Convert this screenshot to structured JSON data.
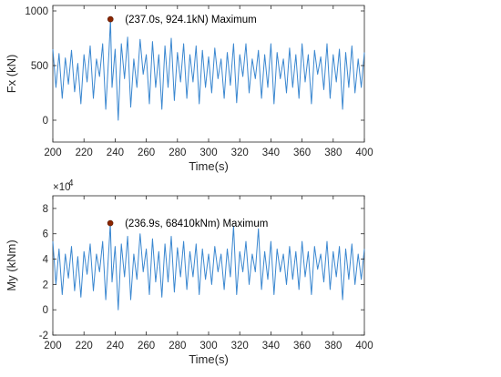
{
  "chart_data": [
    {
      "type": "line",
      "title": "",
      "xlabel": "Time(s)",
      "ylabel": "Fx (kN)",
      "xlim": [
        200,
        400
      ],
      "ylim": [
        -200,
        1050
      ],
      "grid": false,
      "x_ticks": [
        200,
        220,
        240,
        260,
        280,
        300,
        320,
        340,
        360,
        380,
        400
      ],
      "y_ticks": [
        0,
        500,
        1000
      ],
      "y_multiplier": "",
      "color": "#3a87d0",
      "marker_color": "#8b2500",
      "series": [
        {
          "x": [
            200,
            202,
            204,
            206,
            208,
            210,
            212,
            214,
            216,
            218,
            220,
            222,
            224,
            226,
            228,
            230,
            232,
            234,
            236,
            237,
            238,
            240,
            242,
            244,
            246,
            248,
            250,
            252,
            254,
            256,
            258,
            260,
            262,
            264,
            266,
            268,
            270,
            272,
            274,
            276,
            278,
            280,
            282,
            284,
            286,
            288,
            290,
            292,
            294,
            296,
            298,
            300,
            302,
            304,
            306,
            308,
            310,
            312,
            314,
            316,
            318,
            320,
            322,
            324,
            326,
            328,
            330,
            332,
            334,
            336,
            338,
            340,
            342,
            344,
            346,
            348,
            350,
            352,
            354,
            356,
            358,
            360,
            362,
            364,
            366,
            368,
            370,
            372,
            374,
            376,
            378,
            380,
            382,
            384,
            386,
            388,
            390,
            392,
            394,
            396,
            398,
            400
          ],
          "y": [
            650,
            300,
            610,
            200,
            570,
            330,
            640,
            260,
            520,
            150,
            600,
            350,
            680,
            200,
            560,
            400,
            700,
            100,
            620,
            924,
            300,
            650,
            0,
            700,
            380,
            760,
            120,
            560,
            300,
            740,
            420,
            600,
            150,
            720,
            300,
            600,
            100,
            680,
            300,
            750,
            180,
            620,
            350,
            700,
            200,
            600,
            350,
            680,
            150,
            640,
            300,
            580,
            250,
            660,
            380,
            560,
            200,
            620,
            320,
            700,
            160,
            600,
            400,
            700,
            250,
            560,
            380,
            640,
            200,
            600,
            300,
            700,
            150,
            620,
            380,
            560,
            250,
            660,
            300,
            600,
            200,
            700,
            350,
            600,
            150,
            640,
            420,
            580,
            280,
            700,
            200,
            600,
            350,
            650,
            100,
            620,
            300,
            680,
            250,
            560,
            300,
            620
          ]
        }
      ],
      "marker": {
        "x": 237.0,
        "y": 924.1
      },
      "annotation": "(237.0s, 924.1kN) Maximum"
    },
    {
      "type": "line",
      "title": "",
      "xlabel": "Time(s)",
      "ylabel": "My (kNm)",
      "xlim": [
        200,
        400
      ],
      "ylim": [
        -2,
        9
      ],
      "grid": false,
      "x_ticks": [
        200,
        220,
        240,
        260,
        280,
        300,
        320,
        340,
        360,
        380,
        400
      ],
      "y_ticks": [
        -2,
        0,
        2,
        4,
        6,
        8
      ],
      "y_multiplier": "×10",
      "y_multiplier_exp": "4",
      "color": "#3a87d0",
      "marker_color": "#8b2500",
      "series": [
        {
          "x": [
            200,
            202,
            204,
            206,
            208,
            210,
            212,
            214,
            216,
            218,
            220,
            222,
            224,
            226,
            228,
            230,
            232,
            234,
            236,
            236.9,
            238,
            240,
            242,
            244,
            246,
            248,
            250,
            252,
            254,
            256,
            258,
            260,
            262,
            264,
            266,
            268,
            270,
            272,
            274,
            276,
            278,
            280,
            282,
            284,
            286,
            288,
            290,
            292,
            294,
            296,
            298,
            300,
            302,
            304,
            306,
            308,
            310,
            312,
            314,
            316,
            318,
            320,
            322,
            324,
            326,
            328,
            330,
            332,
            334,
            336,
            338,
            340,
            342,
            344,
            346,
            348,
            350,
            352,
            354,
            356,
            358,
            360,
            362,
            364,
            366,
            368,
            370,
            372,
            374,
            376,
            378,
            380,
            382,
            384,
            386,
            388,
            390,
            392,
            394,
            396,
            398,
            400
          ],
          "y": [
            5.4,
            2.0,
            4.8,
            1.2,
            4.4,
            2.5,
            5.0,
            1.5,
            4.2,
            1.0,
            4.6,
            2.8,
            5.2,
            1.5,
            4.4,
            3.0,
            5.4,
            0.8,
            4.9,
            6.84,
            2.2,
            5.0,
            0.0,
            5.2,
            2.6,
            5.8,
            0.8,
            4.4,
            2.4,
            6.0,
            3.0,
            4.8,
            1.2,
            5.6,
            2.2,
            4.6,
            1.0,
            5.2,
            2.2,
            5.8,
            1.4,
            4.9,
            2.6,
            5.4,
            1.6,
            4.6,
            2.6,
            5.2,
            1.2,
            4.8,
            2.4,
            4.4,
            2.0,
            5.0,
            3.0,
            4.4,
            1.6,
            4.8,
            2.6,
            6.6,
            1.2,
            4.6,
            3.0,
            5.4,
            2.0,
            4.4,
            3.0,
            6.4,
            1.6,
            4.6,
            2.4,
            5.4,
            1.2,
            4.8,
            3.0,
            4.4,
            2.0,
            5.0,
            2.4,
            4.6,
            1.6,
            5.4,
            2.6,
            4.6,
            1.2,
            5.0,
            3.2,
            4.4,
            2.2,
            5.4,
            1.6,
            4.6,
            2.6,
            5.0,
            0.8,
            4.8,
            2.4,
            5.2,
            2.0,
            4.4,
            2.4,
            4.8
          ]
        }
      ],
      "marker": {
        "x": 236.9,
        "y": 6.841
      },
      "annotation": "(236.9s, 68410kNm) Maximum"
    }
  ]
}
